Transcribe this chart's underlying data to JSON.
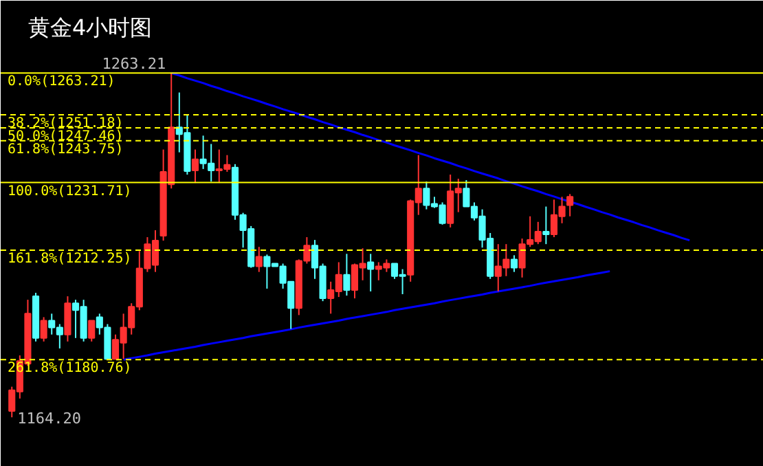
{
  "chart_data": {
    "type": "candlestick",
    "title": "黄金4小时图",
    "categories": [
      null,
      null,
      null,
      null,
      null,
      null,
      null,
      null,
      null,
      null,
      null,
      null,
      null,
      null,
      null,
      null,
      null,
      null,
      null,
      null,
      null,
      null,
      null,
      null,
      null,
      null,
      null,
      null,
      null,
      null,
      null,
      null,
      null,
      null,
      null,
      null,
      null,
      null,
      null,
      null,
      null,
      null,
      null,
      null,
      null,
      null,
      null,
      null,
      null,
      null,
      null,
      null,
      null,
      null,
      null,
      null,
      null,
      null,
      null,
      null,
      null,
      null,
      null,
      null,
      null,
      null,
      null,
      null,
      null,
      null,
      null,
      null,
      null,
      null,
      null,
      null,
      null,
      null,
      null,
      null,
      null,
      null,
      null,
      null,
      null,
      null,
      null,
      null,
      null,
      null,
      null,
      null,
      null,
      null,
      null,
      null
    ],
    "ohlc": [
      [
        1166,
        1173,
        1164.2,
        1172
      ],
      [
        1171.6,
        1182,
        1169.6,
        1180.4
      ],
      [
        1179.6,
        1198,
        1179,
        1194
      ],
      [
        1199,
        1200,
        1186,
        1187
      ],
      [
        1187,
        1193,
        1186,
        1192
      ],
      [
        1192,
        1194,
        1188,
        1190
      ],
      [
        1190,
        1191,
        1184,
        1188
      ],
      [
        1188,
        1199,
        1186,
        1197
      ],
      [
        1197,
        1198,
        1187,
        1195
      ],
      [
        1196,
        1198,
        1186,
        1187
      ],
      [
        1187,
        1192,
        1186,
        1192
      ],
      [
        1193,
        1194,
        1188,
        1190
      ],
      [
        1190,
        1191,
        1180.8,
        1181
      ],
      [
        1181,
        1188,
        1180.8,
        1186.5
      ],
      [
        1185.6,
        1194,
        1181,
        1190
      ],
      [
        1190,
        1197,
        1188,
        1196
      ],
      [
        1196,
        1212,
        1195,
        1207
      ],
      [
        1207,
        1216,
        1206,
        1214
      ],
      [
        1208,
        1218,
        1206,
        1215
      ],
      [
        1216.4,
        1241.2,
        1215,
        1234.8
      ],
      [
        1231.2,
        1263.21,
        1230,
        1247.6
      ],
      [
        1247.6,
        1257.6,
        1240.4,
        1245.6
      ],
      [
        1246,
        1251,
        1234,
        1235
      ],
      [
        1235.2,
        1241.2,
        1231.6,
        1238.4
      ],
      [
        1238.4,
        1245.2,
        1235.6,
        1237.2
      ],
      [
        1237.2,
        1242.8,
        1232,
        1235.2
      ],
      [
        1235.2,
        1241.2,
        1231.6,
        1235.6
      ],
      [
        1235.6,
        1239.6,
        1234.8,
        1236.8
      ],
      [
        1236,
        1237,
        1221,
        1222.4
      ],
      [
        1222.4,
        1223,
        1213,
        1218
      ],
      [
        1218.4,
        1219.2,
        1207.2,
        1207.6
      ],
      [
        1207.6,
        1213.2,
        1206,
        1210.4
      ],
      [
        1210.4,
        1211,
        1201.2,
        1207.6
      ],
      [
        1208.4,
        1208.4,
        1207.6,
        1207.6
      ],
      [
        1207.6,
        1208.4,
        1201.2,
        1202.8
      ],
      [
        1203.2,
        1203.2,
        1189.6,
        1195.6
      ],
      [
        1195.6,
        1209.6,
        1193.6,
        1209.2
      ],
      [
        1209.2,
        1216,
        1208.4,
        1213.6
      ],
      [
        1213.6,
        1215.2,
        1204,
        1207.2
      ],
      [
        1207.6,
        1208.4,
        1197.6,
        1198.4
      ],
      [
        1198.4,
        1203.2,
        1194,
        1200.8
      ],
      [
        1200.4,
        1208.8,
        1198.8,
        1205.2
      ],
      [
        1205.2,
        1211.2,
        1199.2,
        1200.8
      ],
      [
        1200.8,
        1208.4,
        1198.4,
        1208
      ],
      [
        1207.2,
        1212.8,
        1203.6,
        1208.4
      ],
      [
        1208.8,
        1211.2,
        1200.4,
        1206.8
      ],
      [
        1206.8,
        1208.8,
        1203.6,
        1207.6
      ],
      [
        1207.2,
        1209.6,
        1206,
        1208.4
      ],
      [
        1208.4,
        1208.4,
        1204,
        1204.8
      ],
      [
        1205.2,
        1206.8,
        1199.6,
        1204.8
      ],
      [
        1205.2,
        1226.8,
        1203.2,
        1226.4
      ],
      [
        1226,
        1239.6,
        1222.4,
        1230
      ],
      [
        1230,
        1232,
        1224,
        1225.2
      ],
      [
        1225.6,
        1227.6,
        1224.4,
        1224.8
      ],
      [
        1225.2,
        1226,
        1219.6,
        1220
      ],
      [
        1220,
        1234,
        1218.8,
        1229.2
      ],
      [
        1228.8,
        1232.8,
        1223.2,
        1230
      ],
      [
        1230,
        1232.4,
        1224.8,
        1224.8
      ],
      [
        1224.8,
        1226,
        1220.8,
        1221.6
      ],
      [
        1222,
        1224,
        1213,
        1215.2
      ],
      [
        1215.6,
        1217.2,
        1204,
        1204.8
      ],
      [
        1204.8,
        1214,
        1200.4,
        1207.6
      ],
      [
        1207.2,
        1214,
        1204.8,
        1209.6
      ],
      [
        1209.6,
        1210.8,
        1206,
        1207.2
      ],
      [
        1207.2,
        1215.6,
        1204.4,
        1214
      ],
      [
        1214,
        1222,
        1213.2,
        1215.2
      ],
      [
        1214.8,
        1220.4,
        1214,
        1217.6
      ],
      [
        1217.6,
        1224.8,
        1214,
        1216.8
      ],
      [
        1216.8,
        1226.8,
        1216,
        1222.4
      ],
      [
        1222,
        1227.6,
        1220,
        1224.8
      ],
      [
        1225.2,
        1228.4,
        1222,
        1227.6
      ],
      null,
      null,
      null,
      null,
      null,
      null,
      null,
      null,
      null,
      null,
      null,
      null,
      null,
      null,
      null,
      null,
      null,
      null,
      null,
      null,
      null,
      null,
      null,
      null,
      null
    ],
    "colors": [
      "#ff3232",
      "#ff3232",
      "#ff3232",
      "#54ffff",
      "#ff3232",
      "#54ffff",
      "#54ffff",
      "#ff3232",
      "#54ffff",
      "#54ffff",
      "#ff3232",
      "#54ffff",
      "#54ffff",
      "#ff3232",
      "#ff3232",
      "#ff3232",
      "#ff3232",
      "#ff3232",
      "#ff3232",
      "#ff3232",
      "#ff3232",
      "#54ffff",
      "#54ffff",
      "#ff3232",
      "#54ffff",
      "#54ffff",
      "#ff3232",
      "#ff3232",
      "#54ffff",
      "#54ffff",
      "#54ffff",
      "#ff3232",
      "#54ffff",
      "#54ffff",
      "#54ffff",
      "#54ffff",
      "#ff3232",
      "#ff3232",
      "#54ffff",
      "#54ffff",
      "#ff3232",
      "#ff3232",
      "#54ffff",
      "#ff3232",
      "#ff3232",
      "#54ffff",
      "#ff3232",
      "#ff3232",
      "#54ffff",
      "#54ffff",
      "#ff3232",
      "#ff3232",
      "#54ffff",
      "#54ffff",
      "#54ffff",
      "#ff3232",
      "#ff3232",
      "#54ffff",
      "#54ffff",
      "#54ffff",
      "#54ffff",
      "#ff3232",
      "#ff3232",
      "#54ffff",
      "#ff3232",
      "#ff3232",
      "#ff3232",
      "#54ffff",
      "#ff3232",
      "#ff3232",
      "#ff3232",
      null,
      null,
      null,
      null,
      null,
      null,
      null,
      null,
      null,
      null,
      null,
      null,
      null,
      null,
      null,
      null,
      null,
      null,
      null,
      null,
      null,
      null,
      null,
      null,
      null
    ],
    "series": [
      {
        "type": "line",
        "color": "#0000ff",
        "values": [
          null,
          null,
          null,
          null,
          null,
          null,
          null,
          null,
          null,
          null,
          null,
          null,
          null,
          null,
          null,
          null,
          null,
          null,
          null,
          null,
          1263.2,
          1262.5,
          1261.7,
          1261.0,
          1260.3,
          1259.5,
          1258.8,
          1258.0,
          1257.3,
          1256.5,
          1255.8,
          1255.1,
          1254.3,
          1253.6,
          1252.8,
          1252.1,
          1251.4,
          1250.6,
          1249.9,
          1249.1,
          1248.4,
          1247.6,
          1246.9,
          1246.2,
          1245.4,
          1244.7,
          1243.9,
          1243.2,
          1242.4,
          1241.7,
          1241.0,
          1240.2,
          1239.5,
          1238.7,
          1238.0,
          1237.3,
          1236.5,
          1235.8,
          1235.0,
          1234.3,
          1233.6,
          1232.9,
          1232.1,
          1231.4,
          1230.6,
          1229.9,
          1229.2,
          1228.4,
          1227.7,
          1226.9,
          1226.2,
          1225.5,
          1224.7,
          1224.0,
          1223.2,
          1222.5,
          1221.7,
          1221.0,
          1220.3,
          1219.5,
          1218.8,
          1218.0,
          1217.3,
          1216.6,
          1215.8,
          1215.1,
          null,
          null,
          null,
          null,
          null,
          null,
          null,
          null,
          null,
          null
        ]
      },
      {
        "type": "line",
        "color": "#0000ff",
        "values": [
          null,
          null,
          null,
          null,
          null,
          null,
          null,
          null,
          null,
          null,
          null,
          null,
          null,
          null,
          1180.8,
          1181.2,
          1181.6,
          1182.0,
          1182.5,
          1182.9,
          1183.3,
          1183.7,
          1184.1,
          1184.5,
          1185.0,
          1185.4,
          1185.8,
          1186.2,
          1186.6,
          1187.0,
          1187.5,
          1187.9,
          1188.3,
          1188.7,
          1189.1,
          1189.5,
          1190.0,
          1190.4,
          1190.8,
          1191.2,
          1191.6,
          1192.0,
          1192.5,
          1192.9,
          1193.3,
          1193.7,
          1194.1,
          1194.5,
          1195.0,
          1195.4,
          1195.8,
          1196.2,
          1196.6,
          1197.0,
          1197.5,
          1197.9,
          1198.3,
          1198.7,
          1199.1,
          1199.5,
          1200.0,
          1200.4,
          1200.8,
          1201.2,
          1201.6,
          1202.0,
          1202.5,
          1202.9,
          1203.3,
          1203.7,
          1204.1,
          1204.5,
          1205.0,
          1205.4,
          1205.8,
          1206.2,
          null,
          null,
          null,
          null,
          null,
          null,
          null,
          null,
          null,
          null,
          null,
          null,
          null,
          null,
          null,
          null,
          null,
          null,
          null,
          null
        ]
      }
    ],
    "ylim": [
      1150,
      1284
    ],
    "tick_labels": false,
    "grid": false,
    "ref_lines": [
      {
        "axis": "y",
        "value": 1263.21,
        "label": "0.0%(1263.21)",
        "color": "#ffff00",
        "line_style": "solid"
      },
      {
        "axis": "y",
        "value": 1251.18,
        "label": "38.2%(1251.18)",
        "color": "#ffff00",
        "line_style": "dashed"
      },
      {
        "axis": "y",
        "value": 1247.46,
        "label": "50.0%(1247.46)",
        "color": "#ffff00",
        "line_style": "dashed"
      },
      {
        "axis": "y",
        "value": 1243.75,
        "label": "61.8%(1243.75)",
        "color": "#ffff00",
        "line_style": "dashed"
      },
      {
        "axis": "y",
        "value": 1231.71,
        "label": "100.0%(1231.71)",
        "color": "#ffff00",
        "line_style": "solid"
      },
      {
        "axis": "y",
        "value": 1212.25,
        "label": "161.8%(1212.25)",
        "color": "#ffff00",
        "line_style": "dashed"
      },
      {
        "axis": "y",
        "value": 1180.76,
        "label": "261.8%(1180.76)",
        "color": "#ffff00",
        "line_style": "dashed"
      }
    ],
    "annotations": [
      {
        "text": "1263.21",
        "y": 1263.21
      },
      "1164.20"
    ]
  }
}
